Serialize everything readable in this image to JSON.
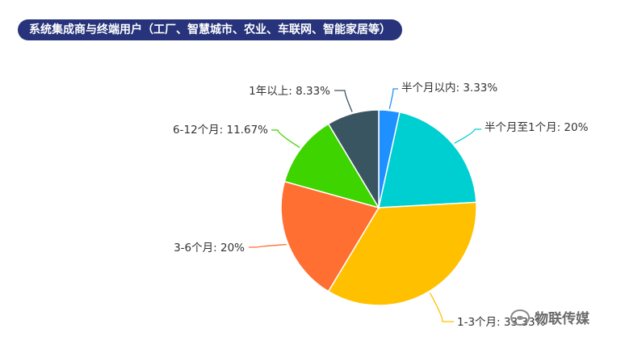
{
  "header": {
    "title": "系统集成商与终端用户（工厂、智慧城市、农业、车联网、智能家居等）"
  },
  "watermark": {
    "icon": "wechat-icon",
    "text": "物联传媒"
  },
  "chart_data": {
    "type": "pie",
    "title": "系统集成商与终端用户（工厂、智慧城市、农业、车联网、智能家居等）",
    "labels": [
      "半个月以内",
      "半个月至1个月",
      "1-3个月",
      "3-6个月",
      "6-12个月",
      "1年以上"
    ],
    "values": [
      3.33,
      20,
      33.33,
      20,
      11.67,
      8.33
    ],
    "label_texts": [
      "半个月以内: 3.33%",
      "半个月至1个月: 20%",
      "1-3个月: 33.33%",
      "3-6个月: 20%",
      "6-12个月: 11.67%",
      "1年以上: 8.33%"
    ],
    "colors": [
      "#1e90ff",
      "#00cfd1",
      "#ffc000",
      "#ff6f31",
      "#3dd400",
      "#3a5562"
    ],
    "start": "top, clockwise",
    "legend": "none, outside labels with leader lines"
  }
}
